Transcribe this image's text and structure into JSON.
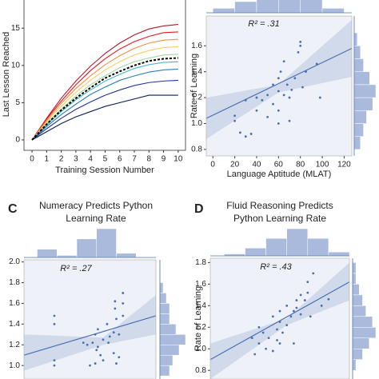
{
  "chart_data": [
    {
      "type": "line",
      "ylabel": "Last Lesson Reached",
      "xlabel": "Training Session Number",
      "x": [
        0,
        1,
        2,
        3,
        4,
        5,
        6,
        7,
        8,
        9,
        10
      ],
      "xlim": [
        -0.55,
        10.5
      ],
      "xticks": [
        0,
        1,
        2,
        3,
        4,
        5,
        6,
        7,
        8,
        9,
        10
      ],
      "ylim": [
        -1.4,
        19
      ],
      "yticks": [
        0,
        5,
        10,
        15
      ],
      "series": [
        {
          "color": "#b2182b",
          "values": [
            0,
            2.9,
            5.6,
            7.9,
            9.9,
            11.6,
            13,
            14.1,
            14.9,
            15.3,
            15.5
          ]
        },
        {
          "color": "#e31a1c",
          "values": [
            0,
            2.8,
            5.2,
            7.4,
            9.3,
            10.9,
            12.2,
            13.2,
            13.9,
            14.4,
            14.5
          ]
        },
        {
          "color": "#fd8d3c",
          "values": [
            0,
            2.6,
            4.9,
            6.9,
            8.6,
            10.1,
            11.3,
            12.3,
            13,
            13.4,
            13.5
          ]
        },
        {
          "color": "#fecc5c",
          "values": [
            0,
            2.4,
            4.5,
            6.4,
            8,
            9.4,
            10.5,
            11.4,
            12,
            12.4,
            12.5
          ]
        },
        {
          "color": "#a1d99b",
          "values": [
            0,
            2.2,
            4.1,
            5.9,
            7.4,
            8.6,
            9.7,
            10.5,
            11,
            11.4,
            11.5
          ]
        },
        {
          "color": "#41b6c4",
          "values": [
            0,
            2,
            3.8,
            5.4,
            6.7,
            7.9,
            8.8,
            9.6,
            10.1,
            10.4,
            10.5
          ]
        },
        {
          "color": "#2c7fb8",
          "values": [
            0,
            1.8,
            3.4,
            4.8,
            6.1,
            7.1,
            8,
            8.6,
            9.1,
            9.4,
            9.5
          ]
        },
        {
          "color": "#253494",
          "values": [
            0,
            1.5,
            2.9,
            4.1,
            5.1,
            6,
            6.7,
            7.3,
            7.7,
            7.9,
            8
          ]
        },
        {
          "color": "#081d58",
          "values": [
            0,
            1.1,
            2.2,
            3.1,
            3.8,
            4.5,
            5,
            5.5,
            6,
            6,
            6
          ]
        },
        {
          "color": "#000000",
          "dashed": true,
          "values": [
            0,
            2.1,
            4,
            5.6,
            7,
            8.3,
            9.2,
            10,
            10.6,
            10.9,
            11
          ]
        }
      ]
    },
    {
      "type": "scatter",
      "annotation": "R² = .31",
      "ylabel": "Rate of Learning",
      "xlabel": "Language Aptitude (MLAT)",
      "xlim": [
        -6,
        127
      ],
      "xticks": [
        0,
        20,
        40,
        60,
        80,
        100,
        120
      ],
      "ylim": [
        0.75,
        1.83
      ],
      "yticks": [
        0.8,
        {
          "value": 1.0,
          "label": "1.0"
        },
        1.2,
        1.4,
        1.6
      ],
      "color": "#4a6fb0",
      "x": [
        20,
        20,
        25,
        30,
        35,
        30,
        40,
        40,
        45,
        50,
        50,
        55,
        55,
        60,
        60,
        60,
        62,
        65,
        65,
        68,
        70,
        70,
        72,
        75,
        78,
        80,
        80,
        82,
        85,
        95,
        98,
        60
      ],
      "values": [
        1.02,
        1.06,
        0.93,
        0.9,
        0.92,
        1.18,
        1.2,
        1.1,
        1.18,
        1.22,
        1.05,
        1.3,
        1.15,
        1.25,
        1.1,
        1.35,
        1.4,
        1.22,
        1.48,
        1.3,
        1.2,
        1.02,
        1.26,
        1.35,
        1.55,
        1.63,
        1.6,
        1.28,
        1.4,
        1.46,
        1.2,
        1.0
      ],
      "fit": {
        "x": [
          -6,
          127
        ],
        "values": [
          1.04,
          1.58
        ]
      },
      "band": {
        "x": [
          -6,
          60,
          127
        ],
        "lower": [
          0.88,
          1.24,
          1.36
        ],
        "upper": [
          1.2,
          1.3,
          1.8
        ]
      },
      "x_hist": {
        "bins": [
          0,
          20,
          40,
          60,
          80,
          100,
          120
        ],
        "counts": [
          2,
          5,
          7,
          10,
          6,
          2
        ]
      },
      "y_hist": {
        "bins": [
          0.8,
          0.9,
          1.0,
          1.1,
          1.2,
          1.3,
          1.4,
          1.5,
          1.6,
          1.7
        ],
        "counts": [
          2,
          3,
          4,
          6,
          7,
          5,
          3,
          2,
          1
        ]
      }
    },
    {
      "type": "scatter",
      "label": "C",
      "title": [
        "Numeracy Predicts Python",
        "Learning Rate"
      ],
      "annotation": "R² = .27",
      "xlim": [
        0,
        10
      ],
      "ylim": [
        0.87,
        2.02
      ],
      "yticks": [
        {
          "value": 1.0,
          "label": "1.0"
        },
        1.2,
        1.4,
        1.6,
        1.8,
        {
          "value": 2.0,
          "label": "2.0"
        }
      ],
      "color": "#4a6fb0",
      "x": [
        2.3,
        2.3,
        2.3,
        2.3,
        4.5,
        4.8,
        5.2,
        5.4,
        5.4,
        5.5,
        5.6,
        5.6,
        5.8,
        6,
        6.3,
        6.4,
        6.5,
        6.8,
        6.8,
        7,
        7.2,
        6.9,
        6.9,
        7,
        7.5,
        7.5,
        7.5,
        7.2,
        5,
        6
      ],
      "values": [
        1.48,
        1.4,
        1.05,
        1,
        1.22,
        1.2,
        1.22,
        1.3,
        1.02,
        1.15,
        1.18,
        1.35,
        1.1,
        1.25,
        1.4,
        1.22,
        1.28,
        1.32,
        1.12,
        1.02,
        1.08,
        1.55,
        1.62,
        1.45,
        1.7,
        1.6,
        1.48,
        1.3,
        1,
        1.05
      ],
      "fit": {
        "x": [
          0,
          10
        ],
        "values": [
          1.1,
          1.48
        ]
      },
      "band": {
        "x": [
          0,
          6,
          10
        ],
        "lower": [
          0.95,
          1.2,
          1.3
        ],
        "upper": [
          1.3,
          1.27,
          1.68
        ]
      },
      "x_hist": {
        "bins": [
          1,
          2.5,
          4,
          5.5,
          7,
          8.5
        ],
        "counts": [
          4,
          1,
          9,
          14,
          2
        ]
      },
      "y_hist": {
        "bins": [
          0.9,
          1.0,
          1.1,
          1.2,
          1.3,
          1.4,
          1.5,
          1.6,
          1.7,
          1.8
        ],
        "counts": [
          3,
          4,
          6,
          8,
          5,
          3,
          3,
          2,
          1
        ]
      }
    },
    {
      "type": "scatter",
      "label": "D",
      "title": [
        "Fluid Reasoning Predicts",
        "Python Learning Rate"
      ],
      "annotation": "R² = .43",
      "ylabel": "Rate of Learning",
      "xlim": [
        0,
        10
      ],
      "ylim": [
        0.72,
        1.84
      ],
      "yticks": [
        0.8,
        {
          "value": 1.0,
          "label": "1.0"
        },
        1.2,
        1.4,
        1.6,
        1.8
      ],
      "color": "#4a6fb0",
      "x": [
        3,
        3.2,
        3.5,
        3.5,
        3.8,
        4,
        4.2,
        4.5,
        4.5,
        4.8,
        4.8,
        5,
        5,
        5.2,
        5.5,
        5.5,
        5.8,
        6,
        6,
        6.2,
        6.2,
        6.5,
        6.5,
        6.8,
        7,
        7,
        7.2,
        7.4,
        8,
        8.5,
        5
      ],
      "values": [
        1.1,
        0.95,
        1.2,
        1.05,
        1.15,
        1,
        1.1,
        0.98,
        1.3,
        1.08,
        1.18,
        1.25,
        1.35,
        1.15,
        1.22,
        1.4,
        1.3,
        1.05,
        1.35,
        1.45,
        1.38,
        1.32,
        1.5,
        1.45,
        1.52,
        1.62,
        1.3,
        1.7,
        1.4,
        1.46,
        1.05
      ],
      "fit": {
        "x": [
          0,
          10
        ],
        "values": [
          0.9,
          1.62
        ]
      },
      "band": {
        "x": [
          0,
          5.5,
          10
        ],
        "lower": [
          0.72,
          1.22,
          1.45
        ],
        "upper": [
          1.05,
          1.28,
          1.8
        ]
      },
      "x_hist": {
        "bins": [
          1,
          2.5,
          4,
          5.5,
          7,
          8.5,
          10
        ],
        "counts": [
          1,
          4,
          9,
          14,
          9,
          2
        ]
      },
      "y_hist": {
        "bins": [
          0.8,
          0.9,
          1.0,
          1.1,
          1.2,
          1.3,
          1.4,
          1.5,
          1.6,
          1.7,
          1.8
        ],
        "counts": [
          1,
          3,
          5,
          7,
          6,
          4,
          3,
          2,
          1,
          1
        ]
      }
    }
  ]
}
